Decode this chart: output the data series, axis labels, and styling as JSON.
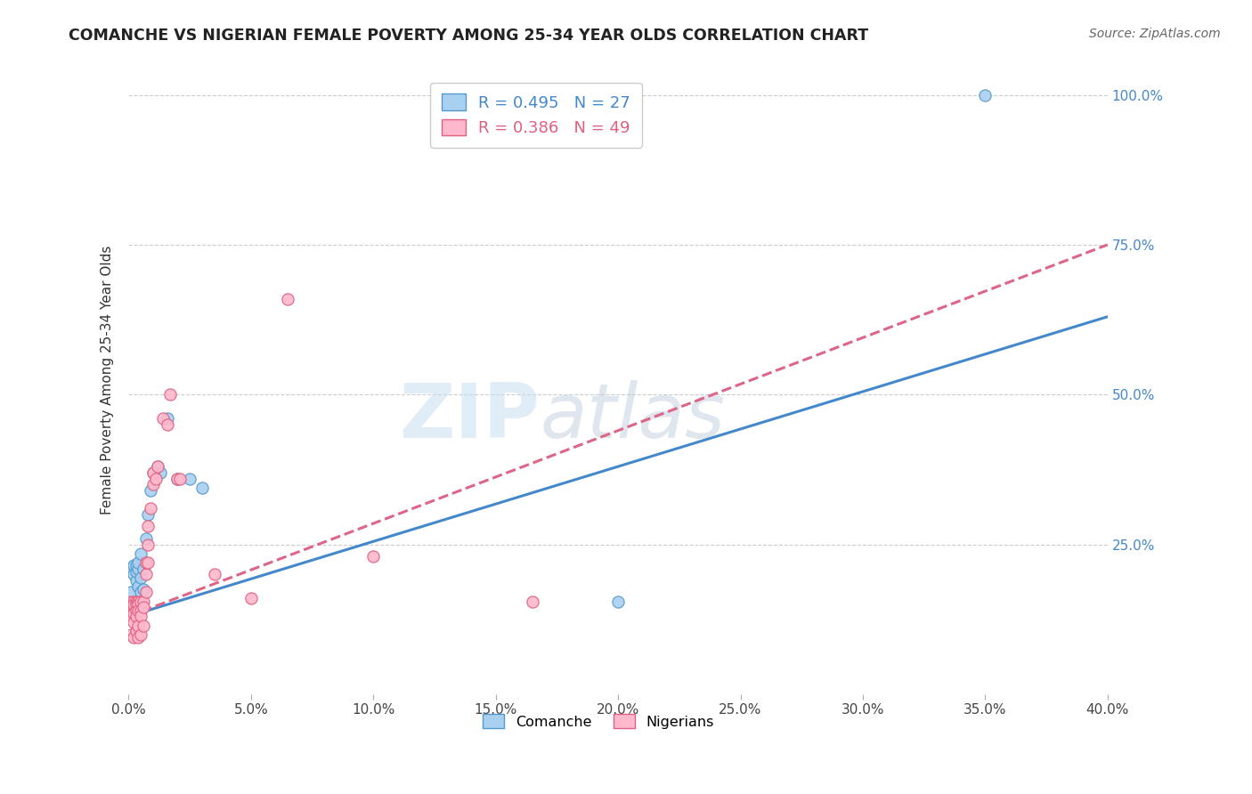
{
  "title": "COMANCHE VS NIGERIAN FEMALE POVERTY AMONG 25-34 YEAR OLDS CORRELATION CHART",
  "source": "Source: ZipAtlas.com",
  "ylabel": "Female Poverty Among 25-34 Year Olds",
  "r_comanche": 0.495,
  "n_comanche": 27,
  "r_nigerian": 0.386,
  "n_nigerian": 49,
  "comanche_fill": "#a8d0f0",
  "comanche_edge": "#5599cc",
  "nigerian_fill": "#ffb8cc",
  "nigerian_edge": "#e06080",
  "comanche_line_color": "#4488cc",
  "nigerian_line_color": "#dd6688",
  "xlim": [
    0.0,
    0.4
  ],
  "ylim": [
    0.0,
    1.05
  ],
  "comanche_x": [
    0.001,
    0.001,
    0.002,
    0.002,
    0.003,
    0.003,
    0.003,
    0.004,
    0.004,
    0.004,
    0.005,
    0.005,
    0.005,
    0.006,
    0.006,
    0.007,
    0.008,
    0.009,
    0.01,
    0.012,
    0.013,
    0.016,
    0.02,
    0.025,
    0.03,
    0.2,
    0.35
  ],
  "comanche_y": [
    0.17,
    0.21,
    0.2,
    0.215,
    0.19,
    0.205,
    0.215,
    0.18,
    0.21,
    0.22,
    0.17,
    0.195,
    0.235,
    0.175,
    0.21,
    0.26,
    0.3,
    0.34,
    0.37,
    0.38,
    0.37,
    0.46,
    0.36,
    0.36,
    0.345,
    0.155,
    1.0
  ],
  "nigerian_x": [
    0.001,
    0.001,
    0.001,
    0.001,
    0.001,
    0.002,
    0.002,
    0.002,
    0.002,
    0.002,
    0.002,
    0.003,
    0.003,
    0.003,
    0.003,
    0.003,
    0.004,
    0.004,
    0.004,
    0.004,
    0.004,
    0.005,
    0.005,
    0.005,
    0.005,
    0.006,
    0.006,
    0.006,
    0.007,
    0.007,
    0.007,
    0.008,
    0.008,
    0.008,
    0.009,
    0.01,
    0.01,
    0.011,
    0.012,
    0.014,
    0.016,
    0.017,
    0.02,
    0.021,
    0.035,
    0.05,
    0.065,
    0.1,
    0.165
  ],
  "nigerian_y": [
    0.155,
    0.145,
    0.14,
    0.13,
    0.1,
    0.145,
    0.155,
    0.15,
    0.135,
    0.12,
    0.095,
    0.155,
    0.15,
    0.14,
    0.13,
    0.105,
    0.155,
    0.15,
    0.14,
    0.115,
    0.095,
    0.155,
    0.14,
    0.13,
    0.1,
    0.155,
    0.145,
    0.115,
    0.2,
    0.22,
    0.17,
    0.22,
    0.25,
    0.28,
    0.31,
    0.35,
    0.37,
    0.36,
    0.38,
    0.46,
    0.45,
    0.5,
    0.36,
    0.36,
    0.2,
    0.16,
    0.66,
    0.23,
    0.155
  ]
}
